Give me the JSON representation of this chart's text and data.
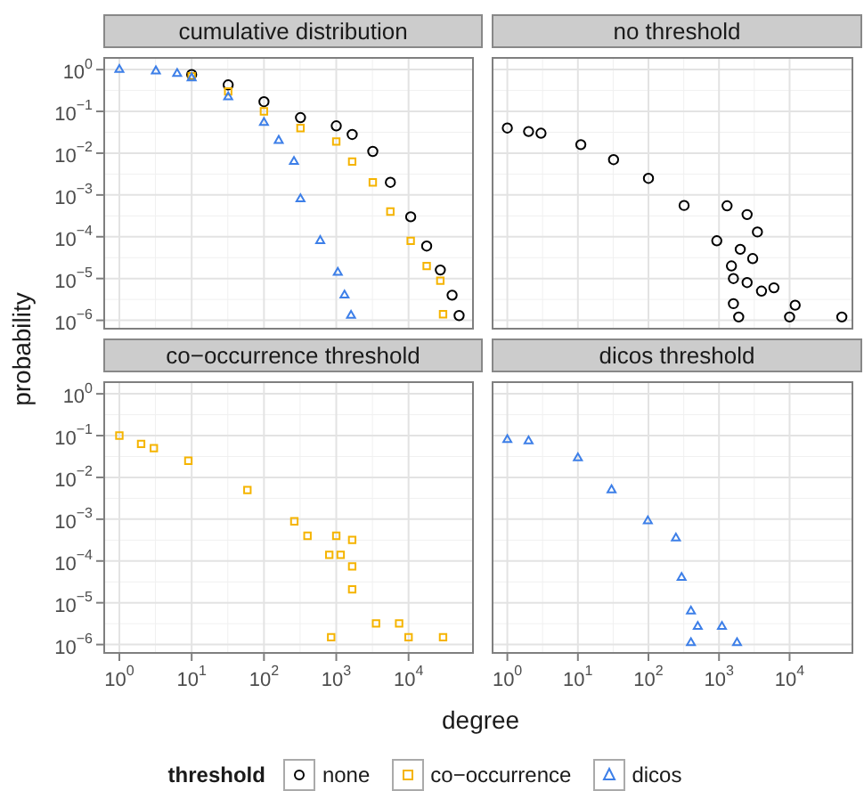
{
  "chart_data": [
    {
      "type": "scatter",
      "title": "cumulative distribution",
      "xlabel": "degree",
      "ylabel": "probability",
      "legend": "bottom",
      "legend_title": "threshold",
      "log": "xy",
      "grid": true,
      "tick_labels": "y",
      "xlim": [
        0.6,
        80000
      ],
      "ylim": [
        6e-07,
        2
      ],
      "xticks": [
        {
          "value": 1,
          "label": null
        },
        {
          "value": 10,
          "label": null
        },
        {
          "value": 100,
          "label": null
        },
        {
          "value": 1000,
          "label": null
        },
        {
          "value": 10000,
          "label": null
        }
      ],
      "yticks": [
        {
          "value": 1e-06,
          "label": "10$^{−6}$"
        },
        {
          "value": 1e-05,
          "label": "10$^{−5}$"
        },
        {
          "value": 0.0001,
          "label": "10$^{−4}$"
        },
        {
          "value": 0.001,
          "label": "10$^{−3}$"
        },
        {
          "value": 0.01,
          "label": "10$^{−2}$"
        },
        {
          "value": 0.1,
          "label": "10$^{−1}$"
        },
        {
          "value": 1,
          "label": "10$^{0}$"
        }
      ],
      "series": [
        {
          "name": "none",
          "color": "#000000",
          "marker": "circle",
          "x": [
            10,
            32,
            100,
            320,
            1000,
            1660,
            3200,
            5600,
            10700,
            17800,
            27500,
            40000,
            50000
          ],
          "values": [
            0.76,
            0.43,
            0.17,
            0.071,
            0.045,
            0.028,
            0.011,
            0.002,
            0.0003,
            6e-05,
            1.6e-05,
            4e-06,
            1.3e-06
          ]
        },
        {
          "name": "co−occurrence",
          "color": "#f5b400",
          "marker": "square",
          "x": [
            10,
            32,
            100,
            320,
            1000,
            1660,
            3200,
            5600,
            10700,
            17800,
            27500,
            30000
          ],
          "values": [
            0.69,
            0.3,
            0.1,
            0.04,
            0.019,
            0.0063,
            0.002,
            0.0004,
            8e-05,
            2e-05,
            8.9e-06,
            1.4e-06
          ]
        },
        {
          "name": "dicos",
          "color": "#3d7fe8",
          "marker": "triangle",
          "x": [
            1,
            3.2,
            6.3,
            10,
            32,
            100,
            160,
            260,
            320,
            600,
            1050,
            1300,
            1600
          ],
          "values": [
            1,
            0.92,
            0.8,
            0.63,
            0.22,
            0.054,
            0.02,
            0.0063,
            0.0008,
            8e-05,
            1.4e-05,
            4e-06,
            1.3e-06
          ]
        }
      ]
    },
    {
      "type": "scatter",
      "title": "no threshold",
      "log": "xy",
      "grid": true,
      "tick_labels": false,
      "xlim": [
        0.6,
        80000
      ],
      "ylim": [
        6e-07,
        2
      ],
      "xticks": [
        {
          "value": 1,
          "label": null
        },
        {
          "value": 10,
          "label": null
        },
        {
          "value": 100,
          "label": null
        },
        {
          "value": 1000,
          "label": null
        },
        {
          "value": 10000,
          "label": null
        }
      ],
      "yticks": [
        {
          "value": 1e-06,
          "label": null
        },
        {
          "value": 1e-05,
          "label": null
        },
        {
          "value": 0.0001,
          "label": null
        },
        {
          "value": 0.001,
          "label": null
        },
        {
          "value": 0.01,
          "label": null
        },
        {
          "value": 0.1,
          "label": null
        },
        {
          "value": 1,
          "label": null
        }
      ],
      "series": [
        {
          "color": "#000000",
          "marker": "circle",
          "x": [
            1,
            2,
            3,
            11,
            32,
            100,
            320,
            930,
            1600,
            1300,
            2500,
            3500,
            3000,
            2000,
            1500,
            2500,
            4000,
            1600,
            6000,
            12000,
            1900,
            10000,
            55000
          ],
          "values": [
            0.04,
            0.033,
            0.03,
            0.016,
            0.007,
            0.0025,
            0.00056,
            8e-05,
            1e-05,
            0.00055,
            0.00034,
            0.00013,
            3e-05,
            5e-05,
            2e-05,
            8e-06,
            5e-06,
            2.5e-06,
            6e-06,
            2.3e-06,
            1.2e-06,
            1.2e-06,
            1.2e-06
          ]
        }
      ]
    },
    {
      "type": "scatter",
      "title": "co−occurrence threshold",
      "log": "xy",
      "grid": true,
      "xlim": [
        0.6,
        80000
      ],
      "ylim": [
        6e-07,
        2
      ],
      "xticks": [
        {
          "value": 1,
          "label": "10$^{0}$"
        },
        {
          "value": 10,
          "label": "10$^{1}$"
        },
        {
          "value": 100,
          "label": "10$^{2}$"
        },
        {
          "value": 1000,
          "label": "10$^{3}$"
        },
        {
          "value": 10000,
          "label": "10$^{4}$"
        }
      ],
      "yticks": [
        {
          "value": 1e-06,
          "label": "10$^{−6}$"
        },
        {
          "value": 1e-05,
          "label": "10$^{−5}$"
        },
        {
          "value": 0.0001,
          "label": "10$^{−4}$"
        },
        {
          "value": 0.001,
          "label": "10$^{−3}$"
        },
        {
          "value": 0.01,
          "label": "10$^{−2}$"
        },
        {
          "value": 0.1,
          "label": "10$^{−1}$"
        },
        {
          "value": 1,
          "label": "10$^{0}$"
        }
      ],
      "series": [
        {
          "color": "#f5b400",
          "marker": "square",
          "x": [
            1,
            2,
            3,
            9,
            59,
            263,
            800,
            1660,
            3550,
            7400,
            400,
            1000,
            1660,
            1150,
            1660,
            850,
            10000,
            30000
          ],
          "values": [
            0.1,
            0.063,
            0.05,
            0.025,
            0.005,
            0.00089,
            0.00014,
            2.1e-05,
            3.2e-06,
            3.2e-06,
            0.0004,
            0.0004,
            0.00032,
            0.00014,
            7.4e-05,
            1.5e-06,
            1.5e-06,
            1.5e-06
          ]
        }
      ]
    },
    {
      "type": "scatter",
      "title": "dicos threshold",
      "log": "xy",
      "grid": true,
      "tick_labels": "x",
      "xlim": [
        0.6,
        80000
      ],
      "ylim": [
        6e-07,
        2
      ],
      "xticks": [
        {
          "value": 1,
          "label": "10$^{0}$"
        },
        {
          "value": 10,
          "label": "10$^{1}$"
        },
        {
          "value": 100,
          "label": "10$^{2}$"
        },
        {
          "value": 1000,
          "label": "10$^{3}$"
        },
        {
          "value": 10000,
          "label": "10$^{4}$"
        }
      ],
      "yticks": [
        {
          "value": 1e-06,
          "label": null
        },
        {
          "value": 1e-05,
          "label": null
        },
        {
          "value": 0.0001,
          "label": null
        },
        {
          "value": 0.001,
          "label": null
        },
        {
          "value": 0.01,
          "label": null
        },
        {
          "value": 0.1,
          "label": null
        },
        {
          "value": 1,
          "label": null
        }
      ],
      "series": [
        {
          "color": "#3d7fe8",
          "marker": "triangle",
          "x": [
            1,
            2,
            10,
            30,
            98,
            245,
            295,
            400,
            500,
            1100,
            400,
            1800
          ],
          "values": [
            0.08,
            0.074,
            0.029,
            0.005,
            0.0009,
            0.00035,
            4e-05,
            6.3e-06,
            2.7e-06,
            2.7e-06,
            1.1e-06,
            1.1e-06
          ]
        }
      ]
    }
  ]
}
